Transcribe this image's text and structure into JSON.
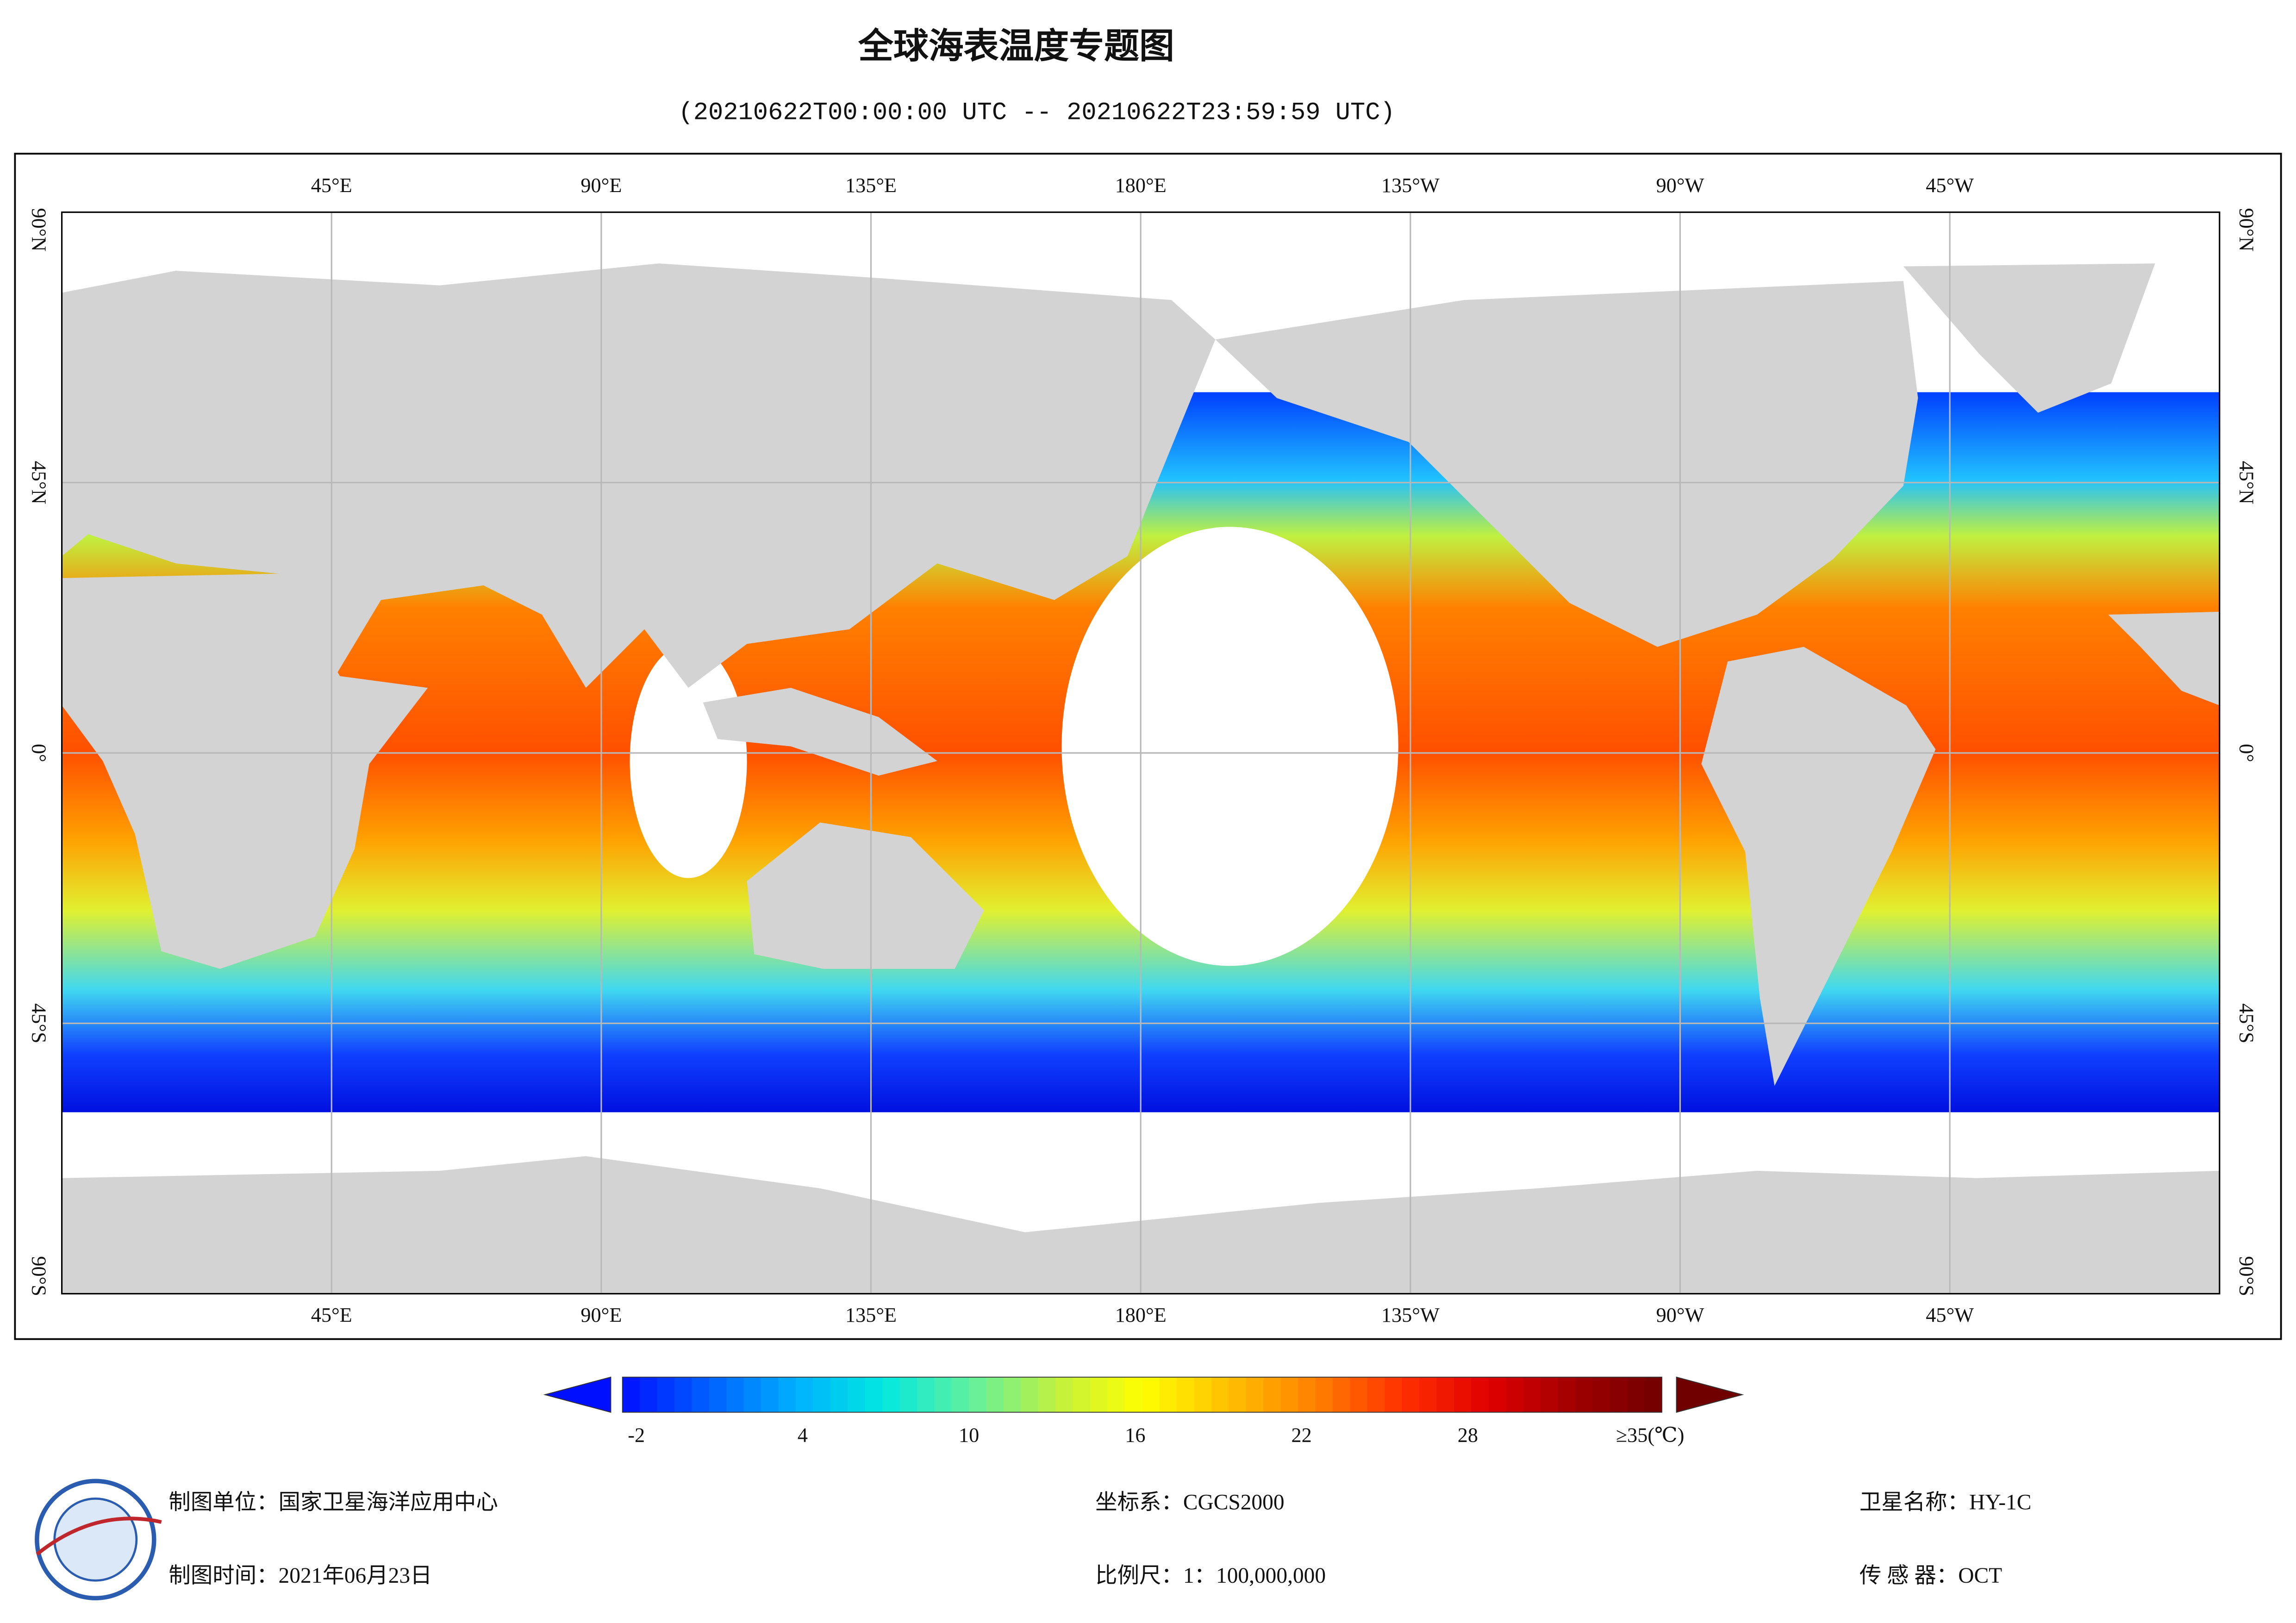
{
  "header": {
    "title": "全球海表温度专题图",
    "subtitle": "(20210622T00:00:00 UTC -- 20210622T23:59:59 UTC)"
  },
  "map": {
    "xlim": [
      0,
      360
    ],
    "ylim": [
      -90,
      90
    ],
    "lon_ticks": [
      {
        "value": 45,
        "label": "45°E"
      },
      {
        "value": 90,
        "label": "90°E"
      },
      {
        "value": 135,
        "label": "135°E"
      },
      {
        "value": 180,
        "label": "180°E"
      },
      {
        "value": 225,
        "label": "135°W"
      },
      {
        "value": 270,
        "label": "90°W"
      },
      {
        "value": 315,
        "label": "45°W"
      }
    ],
    "lat_ticks": [
      {
        "value": 90,
        "label": "90°N"
      },
      {
        "value": 45,
        "label": "45°N"
      },
      {
        "value": 0,
        "label": "0°"
      },
      {
        "value": -45,
        "label": "45°S"
      },
      {
        "value": -90,
        "label": "90°S"
      }
    ]
  },
  "colorbar": {
    "clim": [
      -2.5,
      35
    ],
    "ticks": [
      -2,
      4,
      10,
      16,
      22,
      28,
      {
        "value": 35,
        "label": "≥35(℃)"
      }
    ],
    "colors": [
      "#0010ff",
      "#0060ff",
      "#00b0ff",
      "#00e8e0",
      "#60f0a0",
      "#c0f040",
      "#ffff00",
      "#ffc000",
      "#ff8000",
      "#ff3000",
      "#e00000",
      "#a00000",
      "#700000"
    ]
  },
  "footer": {
    "items": [
      "制图单位：国家卫星海洋应用中心",
      "制图时间：2021年06月23日",
      "坐标系：CGCS2000",
      "比例尺：1：100,000,000",
      "卫星名称：HY-1C",
      "传 感 器：OCT"
    ]
  }
}
